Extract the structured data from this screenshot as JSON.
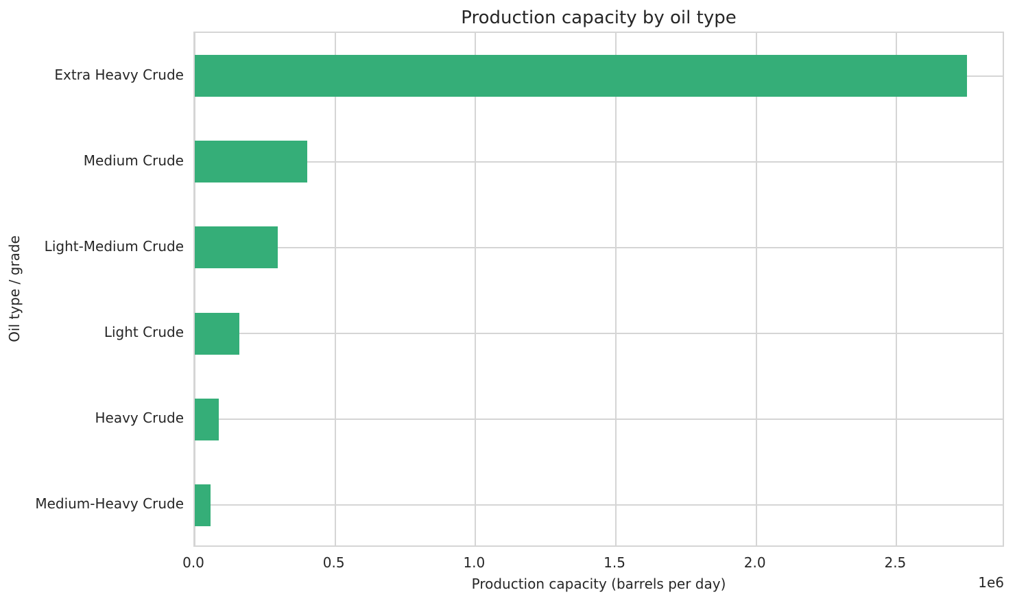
{
  "chart_data": {
    "type": "bar",
    "orientation": "horizontal",
    "title": "Production capacity by oil type",
    "xlabel": "Production capacity (barrels per day)",
    "ylabel": "Oil type / grade",
    "x_offset_label": "1e6",
    "categories": [
      "Extra Heavy Crude",
      "Medium Crude",
      "Light-Medium Crude",
      "Light Crude",
      "Heavy Crude",
      "Medium-Heavy Crude"
    ],
    "values": [
      2750000,
      400000,
      295000,
      160000,
      85000,
      55000
    ],
    "x_tick_values": [
      0,
      500000,
      1000000,
      1500000,
      2000000,
      2500000
    ],
    "x_tick_labels": [
      "0.0",
      "0.5",
      "1.0",
      "1.5",
      "2.0",
      "2.5"
    ],
    "xlim": [
      0,
      2887500
    ],
    "grid": true,
    "legend_position": "none",
    "colors": {
      "bar": "#35ae78",
      "grid": "#d5d5d5",
      "text": "#262626",
      "background": "#ffffff"
    }
  }
}
